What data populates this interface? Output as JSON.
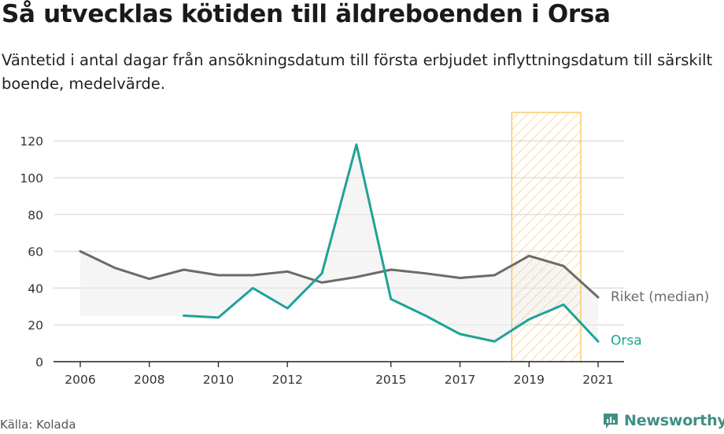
{
  "chart_data": {
    "type": "line",
    "title": "Så utvecklas kötiden till äldreboenden i Orsa",
    "subtitle": "Väntetid i antal dagar från ansökningsdatum till första erbjudet inflyttningsdatum till särskilt boende, medelvärde.",
    "xlabel": "",
    "ylabel": "",
    "x_ticks": [
      2006,
      2008,
      2010,
      2012,
      2015,
      2017,
      2019,
      2021
    ],
    "xlim": [
      2006,
      2021
    ],
    "ylim": [
      0,
      130
    ],
    "y_ticks": [
      0,
      20,
      40,
      60,
      80,
      100,
      120
    ],
    "grid": true,
    "highlight": {
      "from": 2018.5,
      "to": 2020.5
    },
    "series": [
      {
        "name": "Riket (median)",
        "color": "#6b6b6b",
        "points": [
          [
            2006,
            60
          ],
          [
            2007,
            51
          ],
          [
            2008,
            45
          ],
          [
            2009,
            50
          ],
          [
            2010,
            47
          ],
          [
            2011,
            47
          ],
          [
            2012,
            49
          ],
          [
            2013,
            43
          ],
          [
            2014,
            46
          ],
          [
            2015,
            50
          ],
          [
            2016,
            48
          ],
          [
            2017,
            45.5
          ],
          [
            2018,
            47
          ],
          [
            2019,
            57.5
          ],
          [
            2020,
            52
          ],
          [
            2021,
            35
          ]
        ]
      },
      {
        "name": "Orsa",
        "color": "#1ea398",
        "points": [
          [
            2009,
            25
          ],
          [
            2010,
            24
          ],
          [
            2011,
            40
          ],
          [
            2012,
            29
          ],
          [
            2013,
            48
          ],
          [
            2014,
            118
          ],
          [
            2015,
            34
          ],
          [
            2016,
            25
          ],
          [
            2017,
            15
          ],
          [
            2018,
            11
          ],
          [
            2019,
            23
          ],
          [
            2020,
            31
          ],
          [
            2021,
            11
          ]
        ]
      }
    ]
  },
  "footer": {
    "source": "Källa: Kolada",
    "brand": "Newsworthy"
  },
  "colors": {
    "grid": "#d9d9d9",
    "axis_text": "#333333",
    "fill": "#ededed",
    "highlight_stroke": "#f5c04a",
    "brand": "#3f8f85"
  }
}
